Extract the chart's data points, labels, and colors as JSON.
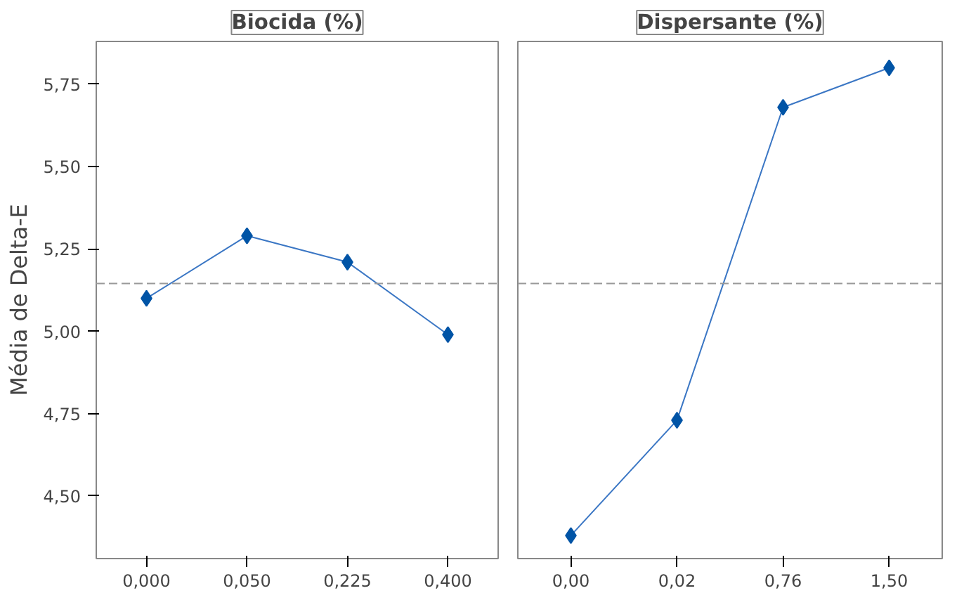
{
  "chart_data": [
    {
      "type": "line",
      "title": "Biocida (%)",
      "ylabel": "Média de Delta-E",
      "categories": [
        "0,000",
        "0,050",
        "0,225",
        "0,400"
      ],
      "series": [
        {
          "color": "#0054a6",
          "values": [
            5.1,
            5.29,
            5.21,
            4.99
          ]
        }
      ],
      "ylim": [
        4.31,
        5.88
      ],
      "yticks": [
        {
          "value": 4.5,
          "label": "4,50"
        },
        {
          "value": 4.75,
          "label": "4,75"
        },
        {
          "value": 5.0,
          "label": "5,00"
        },
        {
          "value": 5.25,
          "label": "5,25"
        },
        {
          "value": 5.5,
          "label": "5,50"
        },
        {
          "value": 5.75,
          "label": "5,75"
        }
      ],
      "ref_lines": [
        {
          "axis": "y",
          "value": 5.145,
          "color": "#999999",
          "line_style": "dashed"
        }
      ],
      "marker": "diamond",
      "grid": false
    },
    {
      "type": "line",
      "title": "Dispersante (%)",
      "categories": [
        "0,00",
        "0,02",
        "0,76",
        "1,50"
      ],
      "series": [
        {
          "color": "#0054a6",
          "values": [
            4.38,
            4.73,
            5.68,
            5.8
          ]
        }
      ],
      "ylim": [
        4.31,
        5.88
      ],
      "ref_lines": [
        {
          "axis": "y",
          "value": 5.145,
          "color": "#999999",
          "line_style": "dashed"
        }
      ],
      "marker": "diamond",
      "grid": false,
      "tick_labels": "x"
    }
  ]
}
